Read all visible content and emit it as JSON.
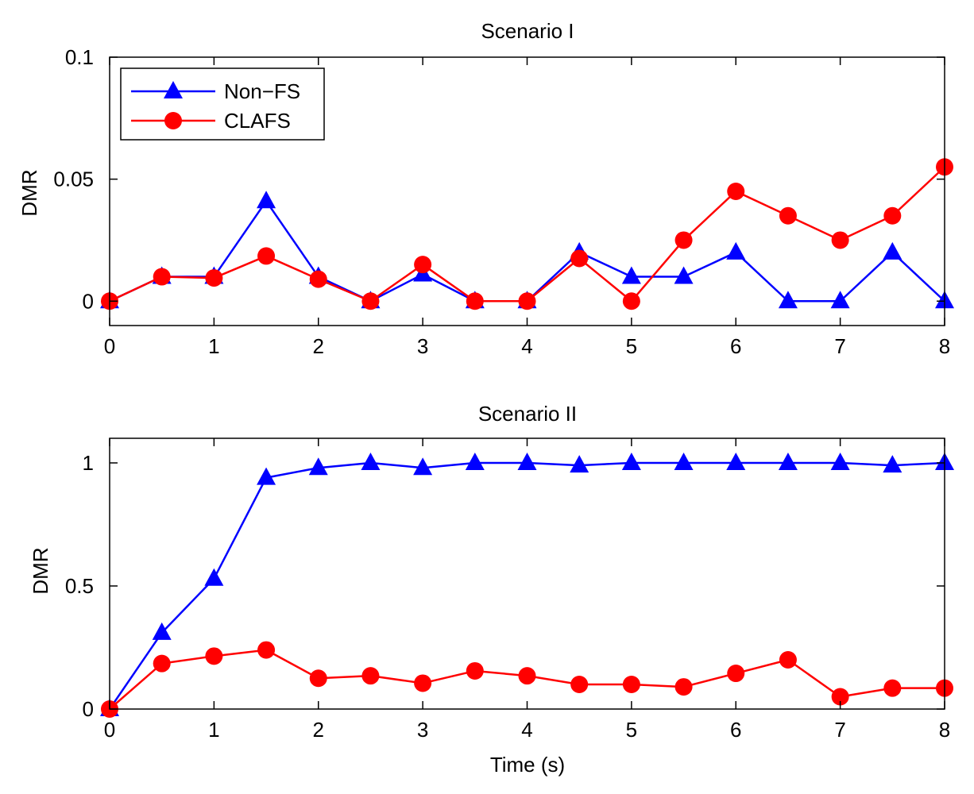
{
  "chart_data": [
    {
      "type": "line",
      "title": "Scenario I",
      "xlabel": "",
      "ylabel": "DMR",
      "xlim": [
        0,
        8
      ],
      "ylim": [
        -0.01,
        0.1
      ],
      "xticks": [
        0,
        1,
        2,
        3,
        4,
        5,
        6,
        7,
        8
      ],
      "xtick_labels": [
        "0",
        "1",
        "2",
        "3",
        "4",
        "5",
        "6",
        "7",
        "8"
      ],
      "yticks": [
        0,
        0.05,
        0.1
      ],
      "ytick_labels": [
        "0",
        "0.05",
        "0.1"
      ],
      "legend": {
        "position": "top-left",
        "entries": [
          "Non−FS",
          "CLAFS"
        ]
      },
      "x": [
        0,
        0.5,
        1,
        1.5,
        2,
        2.5,
        3,
        3.5,
        4,
        4.5,
        5,
        5.5,
        6,
        6.5,
        7,
        7.5,
        8
      ],
      "series": [
        {
          "name": "Non−FS",
          "color": "#0000ff",
          "marker": "triangle",
          "values": [
            0,
            0.01,
            0.01,
            0.041,
            0.01,
            0,
            0.011,
            0,
            0,
            0.02,
            0.01,
            0.01,
            0.02,
            0,
            0,
            0.02,
            0
          ]
        },
        {
          "name": "CLAFS",
          "color": "#ff0000",
          "marker": "circle",
          "values": [
            0,
            0.01,
            0.0095,
            0.0185,
            0.009,
            0,
            0.015,
            0,
            0,
            0.0175,
            0,
            0.025,
            0.045,
            0.035,
            0.025,
            0.035,
            0.055
          ]
        }
      ]
    },
    {
      "type": "line",
      "title": "Scenario II",
      "xlabel": "Time (s)",
      "ylabel": "DMR",
      "xlim": [
        0,
        8
      ],
      "ylim": [
        0,
        1.1
      ],
      "xticks": [
        0,
        1,
        2,
        3,
        4,
        5,
        6,
        7,
        8
      ],
      "xtick_labels": [
        "0",
        "1",
        "2",
        "3",
        "4",
        "5",
        "6",
        "7",
        "8"
      ],
      "yticks": [
        0,
        0.5,
        1
      ],
      "ytick_labels": [
        "0",
        "0.5",
        "1"
      ],
      "x": [
        0,
        0.5,
        1,
        1.5,
        2,
        2.5,
        3,
        3.5,
        4,
        4.5,
        5,
        5.5,
        6,
        6.5,
        7,
        7.5,
        8
      ],
      "series": [
        {
          "name": "Non−FS",
          "color": "#0000ff",
          "marker": "triangle",
          "values": [
            0,
            0.31,
            0.53,
            0.94,
            0.98,
            1.0,
            0.98,
            1.0,
            1.0,
            0.99,
            1.0,
            1.0,
            1.0,
            1.0,
            1.0,
            0.99,
            1.0
          ]
        },
        {
          "name": "CLAFS",
          "color": "#ff0000",
          "marker": "circle",
          "values": [
            0,
            0.185,
            0.215,
            0.24,
            0.125,
            0.135,
            0.105,
            0.155,
            0.135,
            0.1,
            0.1,
            0.09,
            0.145,
            0.2,
            0.05,
            0.085,
            0.085
          ]
        }
      ]
    }
  ]
}
